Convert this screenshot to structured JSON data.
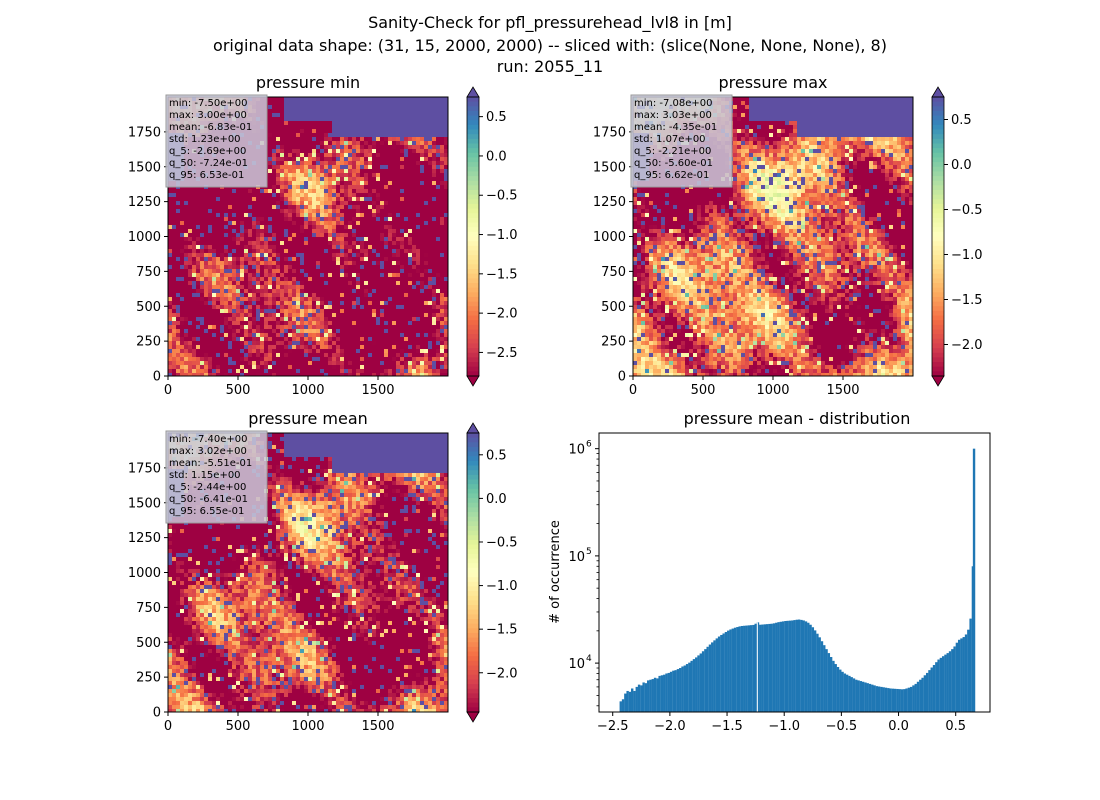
{
  "figure": {
    "title_lines": [
      "Sanity-Check for pfl_pressurehead_lvl8 in [m]",
      "original data shape: (31, 15, 2000, 2000) -- sliced with: (slice(None, None, None), 8)",
      "run: 2055_11"
    ]
  },
  "colors": {
    "spectral": [
      "#9e0142",
      "#d53e4f",
      "#f46d43",
      "#fdae61",
      "#fee08b",
      "#ffffbf",
      "#e6f598",
      "#abdda4",
      "#66c2a5",
      "#3288bd",
      "#5e4fa2"
    ],
    "hist_bar": "#1f77b4",
    "sea": "#5e4fa2",
    "stats_box_bg": "#c8c8d8"
  },
  "chart_data": [
    {
      "type": "heatmap",
      "title": "pressure min",
      "x_ticks": [
        "0",
        "500",
        "1000",
        "1500"
      ],
      "y_ticks": [
        "0",
        "250",
        "500",
        "750",
        "1000",
        "1250",
        "1500",
        "1750"
      ],
      "xlim": [
        0,
        2000
      ],
      "ylim": [
        0,
        2000
      ],
      "colorbar": {
        "vmin": -2.8,
        "vmax": 0.75,
        "ticks": [
          0.5,
          0.0,
          -0.5,
          -1.0,
          -1.5,
          -2.0,
          -2.5
        ],
        "tick_labels": [
          "0.5",
          "0.0",
          "−0.5",
          "−1.0",
          "−1.5",
          "−2.0",
          "−2.5"
        ],
        "extend": "both"
      },
      "stats": [
        "min: -7.50e+00",
        "max: 3.00e+00",
        "mean: -6.83e-01",
        "std: 1.23e+00",
        "q_5: -2.69e+00",
        "q_50: -7.24e-01",
        "q_95: 6.53e-01"
      ]
    },
    {
      "type": "heatmap",
      "title": "pressure max",
      "x_ticks": [
        "0",
        "500",
        "1000",
        "1500"
      ],
      "y_ticks": [
        "0",
        "250",
        "500",
        "750",
        "1000",
        "1250",
        "1500",
        "1750"
      ],
      "xlim": [
        0,
        2000
      ],
      "ylim": [
        0,
        2000
      ],
      "colorbar": {
        "vmin": -2.35,
        "vmax": 0.75,
        "ticks": [
          0.5,
          0.0,
          -0.5,
          -1.0,
          -1.5,
          -2.0
        ],
        "tick_labels": [
          "0.5",
          "0.0",
          "−0.5",
          "−1.0",
          "−1.5",
          "−2.0"
        ],
        "extend": "both"
      },
      "stats": [
        "min: -7.08e+00",
        "max: 3.03e+00",
        "mean: -4.35e-01",
        "std: 1.07e+00",
        "q_5: -2.21e+00",
        "q_50: -5.60e-01",
        "q_95: 6.62e-01"
      ]
    },
    {
      "type": "heatmap",
      "title": "pressure mean",
      "x_ticks": [
        "0",
        "500",
        "1000",
        "1500"
      ],
      "y_ticks": [
        "0",
        "250",
        "500",
        "750",
        "1000",
        "1250",
        "1500",
        "1750"
      ],
      "xlim": [
        0,
        2000
      ],
      "ylim": [
        0,
        2000
      ],
      "colorbar": {
        "vmin": -2.45,
        "vmax": 0.75,
        "ticks": [
          0.5,
          0.0,
          -0.5,
          -1.0,
          -1.5,
          -2.0
        ],
        "tick_labels": [
          "0.5",
          "0.0",
          "−0.5",
          "−1.0",
          "−1.5",
          "−2.0"
        ],
        "extend": "both"
      },
      "stats": [
        "min: -7.40e+00",
        "max: 3.02e+00",
        "mean: -5.51e-01",
        "std: 1.15e+00",
        "q_5: -2.44e+00",
        "q_50: -6.41e-01",
        "q_95: 6.55e-01"
      ]
    },
    {
      "type": "bar",
      "title": "pressure mean - distribution",
      "xlabel": "",
      "ylabel": "# of occurrence",
      "yscale": "log",
      "xlim": [
        -2.62,
        0.8
      ],
      "ylim": [
        3500,
        1400000
      ],
      "x_ticks": [
        -2.5,
        -2.0,
        -1.5,
        -1.0,
        -0.5,
        0.0,
        0.5
      ],
      "x_tick_labels": [
        "−2.5",
        "−2.0",
        "−1.5",
        "−1.0",
        "−0.5",
        "0.0",
        "0.5"
      ],
      "y_ticks": [
        10000,
        100000,
        1000000
      ],
      "y_tick_labels": [
        "10^4",
        "10^5",
        "10^6"
      ],
      "bin_width": 0.02,
      "bins": [
        [
          -2.44,
          4400
        ],
        [
          -2.42,
          4600
        ],
        [
          -2.4,
          5200
        ],
        [
          -2.38,
          5500
        ],
        [
          -2.36,
          5400
        ],
        [
          -2.34,
          5800
        ],
        [
          -2.32,
          5500
        ],
        [
          -2.3,
          6000
        ],
        [
          -2.28,
          6300
        ],
        [
          -2.26,
          6200
        ],
        [
          -2.24,
          6600
        ],
        [
          -2.22,
          6500
        ],
        [
          -2.2,
          6900
        ],
        [
          -2.18,
          7000
        ],
        [
          -2.16,
          7100
        ],
        [
          -2.14,
          7300
        ],
        [
          -2.12,
          7200
        ],
        [
          -2.1,
          7600
        ],
        [
          -2.08,
          7700
        ],
        [
          -2.06,
          7800
        ],
        [
          -2.04,
          8000
        ],
        [
          -2.02,
          8100
        ],
        [
          -2.0,
          8300
        ],
        [
          -1.98,
          8500
        ],
        [
          -1.96,
          8600
        ],
        [
          -1.94,
          8800
        ],
        [
          -1.92,
          9000
        ],
        [
          -1.9,
          9300
        ],
        [
          -1.88,
          9500
        ],
        [
          -1.86,
          9800
        ],
        [
          -1.84,
          10100
        ],
        [
          -1.82,
          10500
        ],
        [
          -1.8,
          10900
        ],
        [
          -1.78,
          11300
        ],
        [
          -1.76,
          11800
        ],
        [
          -1.74,
          12300
        ],
        [
          -1.72,
          12900
        ],
        [
          -1.7,
          13500
        ],
        [
          -1.68,
          14200
        ],
        [
          -1.66,
          14900
        ],
        [
          -1.64,
          15600
        ],
        [
          -1.62,
          16300
        ],
        [
          -1.6,
          17000
        ],
        [
          -1.58,
          17700
        ],
        [
          -1.56,
          18300
        ],
        [
          -1.54,
          18900
        ],
        [
          -1.52,
          19500
        ],
        [
          -1.5,
          20100
        ],
        [
          -1.48,
          20600
        ],
        [
          -1.46,
          21000
        ],
        [
          -1.44,
          21400
        ],
        [
          -1.42,
          21700
        ],
        [
          -1.4,
          22000
        ],
        [
          -1.38,
          22200
        ],
        [
          -1.36,
          22300
        ],
        [
          -1.34,
          22400
        ],
        [
          -1.32,
          22500
        ],
        [
          -1.3,
          22600
        ],
        [
          -1.28,
          22700
        ],
        [
          -1.26,
          23300
        ],
        [
          -1.24,
          24000
        ],
        [
          -1.22,
          22800
        ],
        [
          -1.2,
          22900
        ],
        [
          -1.18,
          23000
        ],
        [
          -1.16,
          23100
        ],
        [
          -1.14,
          23200
        ],
        [
          -1.12,
          23300
        ],
        [
          -1.1,
          23500
        ],
        [
          -1.08,
          23800
        ],
        [
          -1.06,
          24100
        ],
        [
          -1.04,
          24300
        ],
        [
          -1.02,
          24500
        ],
        [
          -1.0,
          24700
        ],
        [
          -0.98,
          24800
        ],
        [
          -0.96,
          24900
        ],
        [
          -0.94,
          25000
        ],
        [
          -0.92,
          25200
        ],
        [
          -0.9,
          25400
        ],
        [
          -0.88,
          25500
        ],
        [
          -0.86,
          25300
        ],
        [
          -0.84,
          25000
        ],
        [
          -0.82,
          24500
        ],
        [
          -0.8,
          23800
        ],
        [
          -0.78,
          22800
        ],
        [
          -0.76,
          21600
        ],
        [
          -0.74,
          20200
        ],
        [
          -0.72,
          18800
        ],
        [
          -0.7,
          17400
        ],
        [
          -0.68,
          16000
        ],
        [
          -0.66,
          14700
        ],
        [
          -0.64,
          13500
        ],
        [
          -0.62,
          12400
        ],
        [
          -0.6,
          11400
        ],
        [
          -0.58,
          10500
        ],
        [
          -0.56,
          9800
        ],
        [
          -0.54,
          9200
        ],
        [
          -0.52,
          8700
        ],
        [
          -0.5,
          8300
        ],
        [
          -0.48,
          8000
        ],
        [
          -0.46,
          7800
        ],
        [
          -0.44,
          7600
        ],
        [
          -0.42,
          7400
        ],
        [
          -0.4,
          7200
        ],
        [
          -0.38,
          7000
        ],
        [
          -0.36,
          6900
        ],
        [
          -0.34,
          6800
        ],
        [
          -0.32,
          6700
        ],
        [
          -0.3,
          6600
        ],
        [
          -0.28,
          6500
        ],
        [
          -0.26,
          6400
        ],
        [
          -0.24,
          6300
        ],
        [
          -0.22,
          6200
        ],
        [
          -0.2,
          6100
        ],
        [
          -0.18,
          6050
        ],
        [
          -0.16,
          6000
        ],
        [
          -0.14,
          5950
        ],
        [
          -0.12,
          5900
        ],
        [
          -0.1,
          5850
        ],
        [
          -0.08,
          5800
        ],
        [
          -0.06,
          5780
        ],
        [
          -0.04,
          5760
        ],
        [
          -0.02,
          5740
        ],
        [
          0.0,
          5720
        ],
        [
          0.02,
          5700
        ],
        [
          0.04,
          5720
        ],
        [
          0.06,
          5800
        ],
        [
          0.08,
          5900
        ],
        [
          0.1,
          6000
        ],
        [
          0.12,
          6200
        ],
        [
          0.14,
          6400
        ],
        [
          0.16,
          6700
        ],
        [
          0.18,
          7000
        ],
        [
          0.2,
          7300
        ],
        [
          0.22,
          7700
        ],
        [
          0.24,
          8100
        ],
        [
          0.26,
          8600
        ],
        [
          0.28,
          9100
        ],
        [
          0.3,
          9600
        ],
        [
          0.32,
          10200
        ],
        [
          0.34,
          10800
        ],
        [
          0.36,
          11200
        ],
        [
          0.38,
          11600
        ],
        [
          0.4,
          12000
        ],
        [
          0.42,
          12400
        ],
        [
          0.44,
          12900
        ],
        [
          0.46,
          13500
        ],
        [
          0.48,
          14300
        ],
        [
          0.5,
          15500
        ],
        [
          0.52,
          16500
        ],
        [
          0.54,
          17000
        ],
        [
          0.56,
          17500
        ],
        [
          0.58,
          18500
        ],
        [
          0.6,
          20500
        ],
        [
          0.62,
          26000
        ],
        [
          0.64,
          80000
        ],
        [
          0.65,
          1000000
        ]
      ]
    }
  ]
}
